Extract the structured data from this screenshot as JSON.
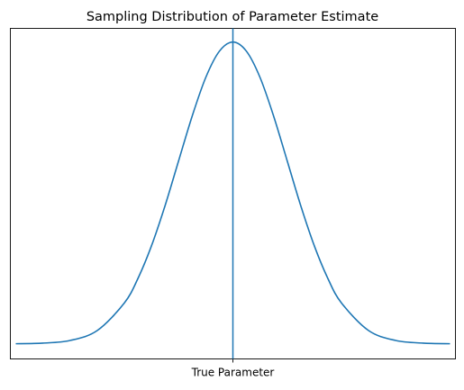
{
  "chart_data": {
    "type": "line",
    "title": "Sampling Distribution of Parameter Estimate",
    "xlabel": "",
    "ylabel": "",
    "xlim": [
      -4.1,
      4.1
    ],
    "ylim": [
      -0.02,
      0.417
    ],
    "x_tick_labels": [
      {
        "x": 0,
        "label": "True Parameter"
      }
    ],
    "y_tick_labels": [],
    "grid": false,
    "legend": "none",
    "reference_lines": [
      {
        "orientation": "vertical",
        "x": 0,
        "color": "#1f77b4"
      }
    ],
    "series": [
      {
        "color": "#1f77b4",
        "x": [
          -4,
          -3.5,
          -3,
          -2.5,
          -2,
          -1.75,
          -1.5,
          -1.25,
          -1,
          -0.75,
          -0.5,
          -0.25,
          0,
          0.25,
          0.5,
          0.75,
          1,
          1.25,
          1.5,
          1.75,
          2,
          2.5,
          3,
          3.5,
          4
        ],
        "y": [
          0.0001,
          0.0009,
          0.0044,
          0.0175,
          0.054,
          0.0863,
          0.1295,
          0.1826,
          0.242,
          0.3011,
          0.3521,
          0.3867,
          0.3989,
          0.3867,
          0.3521,
          0.3011,
          0.242,
          0.1826,
          0.1295,
          0.0863,
          0.054,
          0.0175,
          0.0044,
          0.0009,
          0.0001
        ]
      }
    ]
  }
}
